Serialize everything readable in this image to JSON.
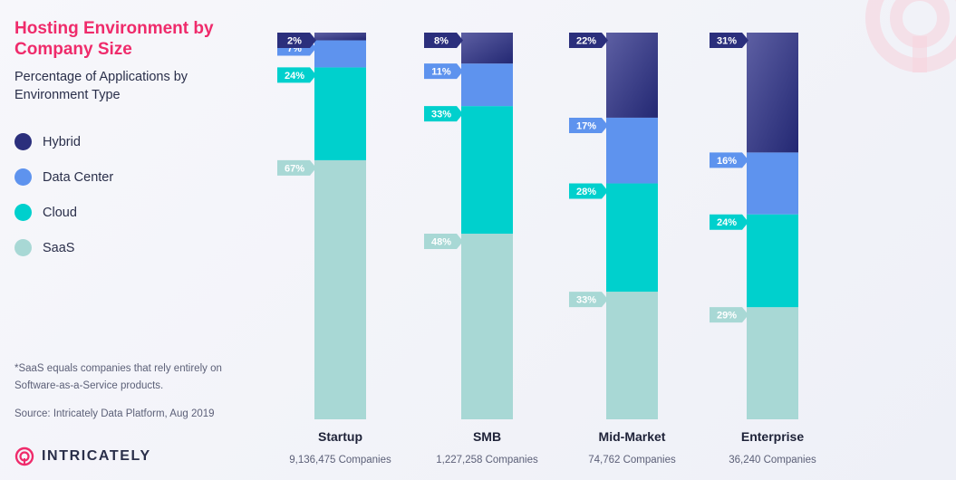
{
  "title": "Hosting Environment by Company Size",
  "subtitle": "Percentage of Applications by Environment Type",
  "legend": [
    {
      "label": "Hybrid",
      "color": "#2b2f7c"
    },
    {
      "label": "Data Center",
      "color": "#5e93ee"
    },
    {
      "label": "Cloud",
      "color": "#00d0cd"
    },
    {
      "label": "SaaS",
      "color": "#a8d8d5"
    }
  ],
  "footnote": "*SaaS equals companies that rely entirely on Software-as-a-Service products.",
  "source": "Source: Intricately Data Platform, Aug 2019",
  "brand": {
    "name": "INTRICATELY",
    "icon": "intricately-logo-icon",
    "color": "#ef2b6b"
  },
  "chart_data": {
    "type": "bar",
    "stacked": true,
    "categories": [
      "Startup",
      "SMB",
      "Mid-Market",
      "Enterprise"
    ],
    "sublabels": [
      "9,136,475 Companies",
      "1,227,258 Companies",
      "74,762 Companies",
      "36,240 Companies"
    ],
    "series": [
      {
        "name": "SaaS",
        "values": [
          67,
          48,
          33,
          29
        ],
        "color": "#a8d8d5",
        "label_color": "#a8d8d5"
      },
      {
        "name": "Cloud",
        "values": [
          24,
          33,
          28,
          24
        ],
        "color": "#00d0cd",
        "label_color": "#00d0cd"
      },
      {
        "name": "Data Center",
        "values": [
          7,
          11,
          17,
          16
        ],
        "color": "#5e93ee",
        "label_color": "#5e93ee"
      },
      {
        "name": "Hybrid",
        "values": [
          2,
          8,
          22,
          31
        ],
        "color": "#2b2f7c",
        "label_color": "#2b2f7c"
      }
    ],
    "ylim": [
      0,
      100
    ],
    "legend_position": "left"
  }
}
